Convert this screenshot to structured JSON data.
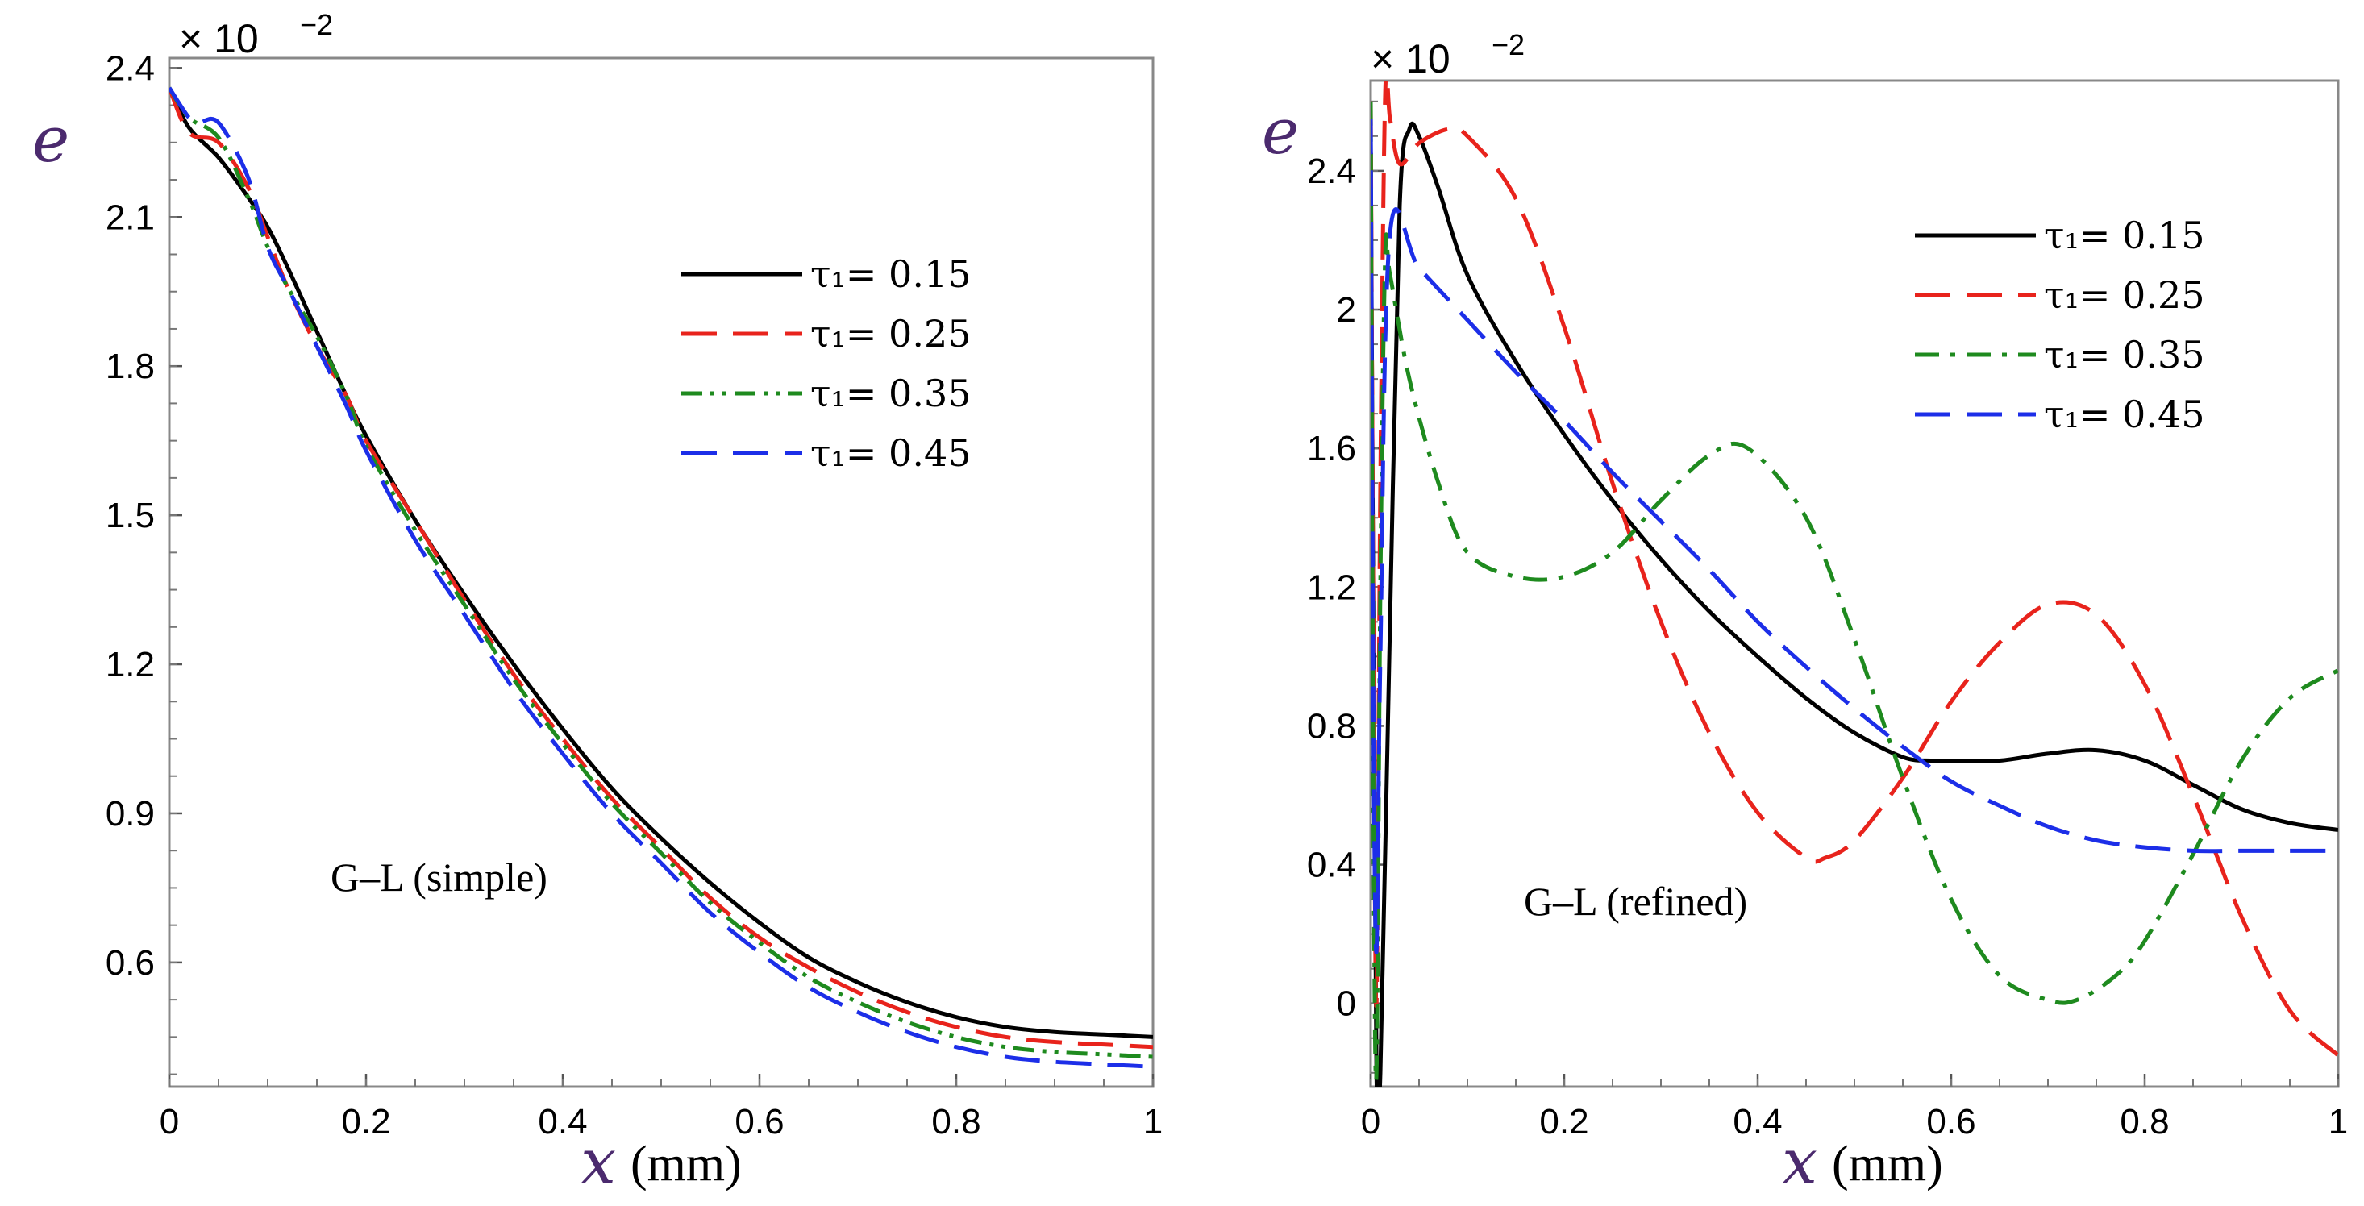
{
  "chart_data": [
    {
      "type": "line",
      "annotation": "G–L (simple)",
      "ylabel": "e",
      "y_multiplier": "× 10",
      "y_multiplier_exp": "−2",
      "xlabel_var": "x",
      "xlabel_unit": "(mm)",
      "xlim": [
        0,
        1
      ],
      "ylim": [
        0.35,
        2.42
      ],
      "xticks": [
        0,
        0.2,
        0.4,
        0.6,
        0.8,
        1
      ],
      "xtick_labels": [
        "0",
        "0.2",
        "0.4",
        "0.6",
        "0.8",
        "1"
      ],
      "yticks": [
        0.6,
        0.9,
        1.2,
        1.5,
        1.8,
        2.1,
        2.4
      ],
      "ytick_labels": [
        "0.6",
        "0.9",
        "1.2",
        "1.5",
        "1.8",
        "2.1",
        "2.4"
      ],
      "legend_position": "upper-right",
      "grid": false,
      "series": [
        {
          "name": "τ₁= 0.15",
          "color": "#000000",
          "dash": "solid",
          "x": [
            0,
            0.02,
            0.05,
            0.08,
            0.1,
            0.12,
            0.15,
            0.18,
            0.2,
            0.25,
            0.3,
            0.35,
            0.4,
            0.45,
            0.5,
            0.55,
            0.6,
            0.65,
            0.7,
            0.75,
            0.8,
            0.85,
            0.9,
            0.95,
            1.0
          ],
          "y": [
            2.36,
            2.28,
            2.22,
            2.14,
            2.08,
            2.0,
            1.87,
            1.74,
            1.66,
            1.49,
            1.34,
            1.2,
            1.07,
            0.95,
            0.85,
            0.76,
            0.68,
            0.61,
            0.56,
            0.52,
            0.49,
            0.47,
            0.46,
            0.455,
            0.45
          ]
        },
        {
          "name": "τ₁= 0.25",
          "color": "#e8231c",
          "dash": "long-dash",
          "x": [
            0,
            0.02,
            0.05,
            0.08,
            0.1,
            0.12,
            0.15,
            0.18,
            0.2,
            0.25,
            0.3,
            0.35,
            0.4,
            0.45,
            0.5,
            0.55,
            0.6,
            0.65,
            0.7,
            0.75,
            0.8,
            0.85,
            0.9,
            0.95,
            1.0
          ],
          "y": [
            2.36,
            2.27,
            2.25,
            2.16,
            2.06,
            1.96,
            1.84,
            1.74,
            1.65,
            1.49,
            1.33,
            1.18,
            1.05,
            0.93,
            0.83,
            0.73,
            0.65,
            0.59,
            0.54,
            0.5,
            0.47,
            0.45,
            0.44,
            0.435,
            0.43
          ]
        },
        {
          "name": "τ₁= 0.35",
          "color": "#1e8a1e",
          "dash": "dash-dot-dot",
          "x": [
            0,
            0.02,
            0.05,
            0.08,
            0.1,
            0.12,
            0.15,
            0.18,
            0.2,
            0.25,
            0.3,
            0.35,
            0.4,
            0.45,
            0.5,
            0.55,
            0.6,
            0.65,
            0.7,
            0.75,
            0.8,
            0.85,
            0.9,
            0.95,
            1.0
          ],
          "y": [
            2.36,
            2.3,
            2.26,
            2.14,
            2.04,
            1.96,
            1.86,
            1.74,
            1.64,
            1.47,
            1.32,
            1.17,
            1.04,
            0.92,
            0.82,
            0.72,
            0.64,
            0.57,
            0.52,
            0.48,
            0.45,
            0.43,
            0.42,
            0.415,
            0.41
          ]
        },
        {
          "name": "τ₁= 0.45",
          "color": "#1c2ee8",
          "dash": "long-dash",
          "x": [
            0,
            0.02,
            0.03,
            0.05,
            0.08,
            0.1,
            0.12,
            0.15,
            0.18,
            0.2,
            0.25,
            0.3,
            0.35,
            0.4,
            0.45,
            0.5,
            0.55,
            0.6,
            0.65,
            0.7,
            0.75,
            0.8,
            0.85,
            0.9,
            0.95,
            1.0
          ],
          "y": [
            2.36,
            2.3,
            2.29,
            2.29,
            2.18,
            2.04,
            1.96,
            1.84,
            1.72,
            1.63,
            1.45,
            1.3,
            1.15,
            1.02,
            0.9,
            0.8,
            0.7,
            0.62,
            0.55,
            0.5,
            0.46,
            0.43,
            0.41,
            0.4,
            0.395,
            0.39
          ]
        }
      ]
    },
    {
      "type": "line",
      "annotation": "G–L (refined)",
      "ylabel": "e",
      "y_multiplier": "× 10",
      "y_multiplier_exp": "−2",
      "xlabel_var": "x",
      "xlabel_unit": "(mm)",
      "xlim": [
        0,
        1
      ],
      "ylim": [
        -0.24,
        2.66
      ],
      "xticks": [
        0,
        0.2,
        0.4,
        0.6,
        0.8,
        1
      ],
      "xtick_labels": [
        "0",
        "0.2",
        "0.4",
        "0.6",
        "0.8",
        "1"
      ],
      "yticks": [
        0,
        0.4,
        0.8,
        1.2,
        1.6,
        2,
        2.4
      ],
      "ytick_labels": [
        "0",
        "0.4",
        "0.8",
        "1.2",
        "1.6",
        "2",
        "2.4"
      ],
      "legend_position": "upper-right",
      "grid": false,
      "series": [
        {
          "name": "τ₁= 0.15",
          "color": "#000000",
          "dash": "solid",
          "x": [
            0,
            0.003,
            0.006,
            0.01,
            0.02,
            0.03,
            0.04,
            0.05,
            0.07,
            0.1,
            0.15,
            0.2,
            0.25,
            0.3,
            0.35,
            0.4,
            0.45,
            0.5,
            0.55,
            0.58,
            0.6,
            0.65,
            0.7,
            0.75,
            0.8,
            0.85,
            0.9,
            0.95,
            1.0
          ],
          "y": [
            2.5,
            1.0,
            -0.2,
            -0.2,
            1.1,
            2.3,
            2.52,
            2.5,
            2.35,
            2.1,
            1.85,
            1.64,
            1.45,
            1.28,
            1.13,
            1.0,
            0.88,
            0.78,
            0.71,
            0.7,
            0.7,
            0.7,
            0.72,
            0.73,
            0.7,
            0.63,
            0.56,
            0.52,
            0.5
          ]
        },
        {
          "name": "τ₁= 0.25",
          "color": "#e8231c",
          "dash": "long-dash",
          "x": [
            0,
            0.003,
            0.006,
            0.01,
            0.015,
            0.02,
            0.03,
            0.05,
            0.08,
            0.1,
            0.15,
            0.2,
            0.25,
            0.3,
            0.35,
            0.4,
            0.45,
            0.47,
            0.5,
            0.55,
            0.6,
            0.65,
            0.7,
            0.75,
            0.8,
            0.85,
            0.9,
            0.95,
            1.0
          ],
          "y": [
            2.6,
            1.0,
            0.0,
            1.5,
            2.62,
            2.55,
            2.42,
            2.48,
            2.52,
            2.5,
            2.32,
            1.95,
            1.5,
            1.1,
            0.78,
            0.55,
            0.42,
            0.42,
            0.47,
            0.65,
            0.87,
            1.04,
            1.15,
            1.12,
            0.92,
            0.6,
            0.25,
            -0.02,
            -0.15
          ]
        },
        {
          "name": "τ₁= 0.35",
          "color": "#1e8a1e",
          "dash": "dash-dot",
          "x": [
            0,
            0.003,
            0.006,
            0.01,
            0.015,
            0.02,
            0.04,
            0.07,
            0.1,
            0.15,
            0.2,
            0.25,
            0.3,
            0.35,
            0.39,
            0.45,
            0.5,
            0.55,
            0.6,
            0.65,
            0.7,
            0.73,
            0.77,
            0.8,
            0.85,
            0.9,
            0.95,
            1.0
          ],
          "y": [
            2.6,
            0.5,
            -0.2,
            1.2,
            2.15,
            2.1,
            1.8,
            1.5,
            1.3,
            1.23,
            1.23,
            1.3,
            1.45,
            1.58,
            1.6,
            1.4,
            1.05,
            0.65,
            0.3,
            0.08,
            0.01,
            0.01,
            0.08,
            0.18,
            0.43,
            0.7,
            0.88,
            0.96
          ]
        },
        {
          "name": "τ₁= 0.45",
          "color": "#1c2ee8",
          "dash": "long-dash",
          "x": [
            0,
            0.003,
            0.006,
            0.01,
            0.02,
            0.05,
            0.1,
            0.15,
            0.2,
            0.25,
            0.3,
            0.35,
            0.4,
            0.45,
            0.5,
            0.55,
            0.6,
            0.65,
            0.7,
            0.75,
            0.8,
            0.85,
            0.9,
            0.95,
            1.0
          ],
          "y": [
            2.55,
            0.8,
            0.15,
            1.0,
            2.22,
            2.12,
            1.97,
            1.82,
            1.68,
            1.53,
            1.39,
            1.25,
            1.1,
            0.97,
            0.85,
            0.74,
            0.64,
            0.57,
            0.51,
            0.47,
            0.45,
            0.44,
            0.44,
            0.44,
            0.44
          ]
        }
      ]
    }
  ]
}
